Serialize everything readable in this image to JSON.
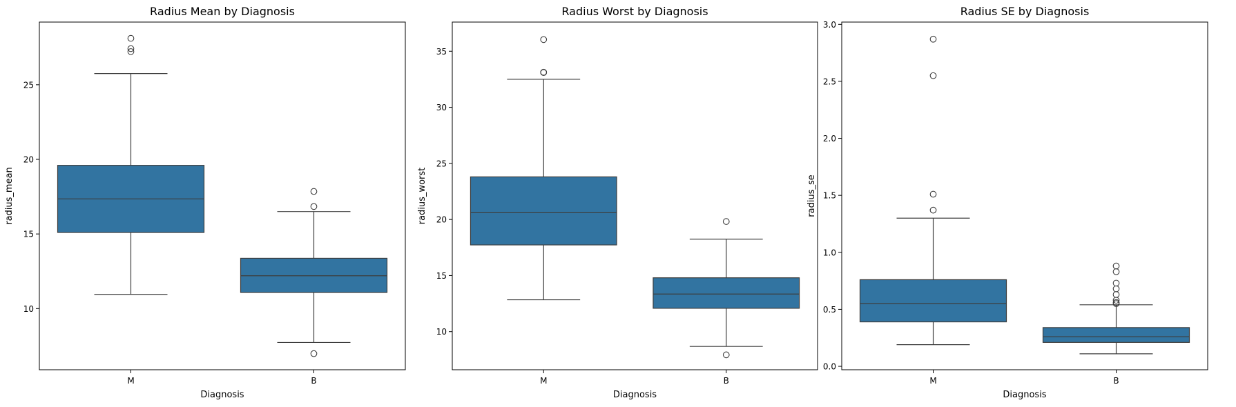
{
  "chart_data": [
    {
      "type": "box",
      "title": "Radius Mean by Diagnosis",
      "xlabel": "Diagnosis",
      "ylabel": "radius_mean",
      "ylim": [
        5.9,
        29.2
      ],
      "yticks": [
        10,
        15,
        20,
        25
      ],
      "categories": [
        "M",
        "B"
      ],
      "box_color": "#3274a1",
      "boxes": [
        {
          "category": "M",
          "whisker_low": 10.95,
          "q1": 15.1,
          "median": 17.35,
          "q3": 19.6,
          "whisker_high": 25.75,
          "outliers": [
            27.22,
            27.42,
            28.11
          ]
        },
        {
          "category": "B",
          "whisker_low": 7.73,
          "q1": 11.08,
          "median": 12.2,
          "q3": 13.37,
          "whisker_high": 16.5,
          "outliers": [
            6.98,
            16.84,
            17.85
          ]
        }
      ]
    },
    {
      "type": "box",
      "title": "Radius Worst by Diagnosis",
      "xlabel": "Diagnosis",
      "ylabel": "radius_worst",
      "ylim": [
        6.6,
        37.6
      ],
      "yticks": [
        10,
        15,
        20,
        25,
        30,
        35
      ],
      "categories": [
        "M",
        "B"
      ],
      "box_color": "#3274a1",
      "boxes": [
        {
          "category": "M",
          "whisker_low": 12.84,
          "q1": 17.73,
          "median": 20.6,
          "q3": 23.8,
          "whisker_high": 32.5,
          "outliers": [
            33.1,
            33.13,
            36.04
          ]
        },
        {
          "category": "B",
          "whisker_low": 8.68,
          "q1": 12.08,
          "median": 13.35,
          "q3": 14.8,
          "whisker_high": 18.25,
          "outliers": [
            7.93,
            19.82
          ]
        }
      ]
    },
    {
      "type": "box",
      "title": "Radius SE by Diagnosis",
      "xlabel": "Diagnosis",
      "ylabel": "radius_se",
      "ylim": [
        -0.03,
        3.02
      ],
      "yticks": [
        0.0,
        0.5,
        1.0,
        1.5,
        2.0,
        2.5,
        3.0
      ],
      "yticklabels": [
        "0.0",
        "0.5",
        "1.0",
        "1.5",
        "2.0",
        "2.5",
        "3.0"
      ],
      "categories": [
        "M",
        "B"
      ],
      "box_color": "#3274a1",
      "boxes": [
        {
          "category": "M",
          "whisker_low": 0.19,
          "q1": 0.39,
          "median": 0.55,
          "q3": 0.76,
          "whisker_high": 1.3,
          "outliers": [
            1.37,
            1.51,
            2.55,
            2.87
          ]
        },
        {
          "category": "B",
          "whisker_low": 0.11,
          "q1": 0.21,
          "median": 0.26,
          "q3": 0.34,
          "whisker_high": 0.54,
          "outliers": [
            0.55,
            0.56,
            0.58,
            0.63,
            0.68,
            0.73,
            0.83,
            0.88
          ]
        }
      ]
    }
  ]
}
